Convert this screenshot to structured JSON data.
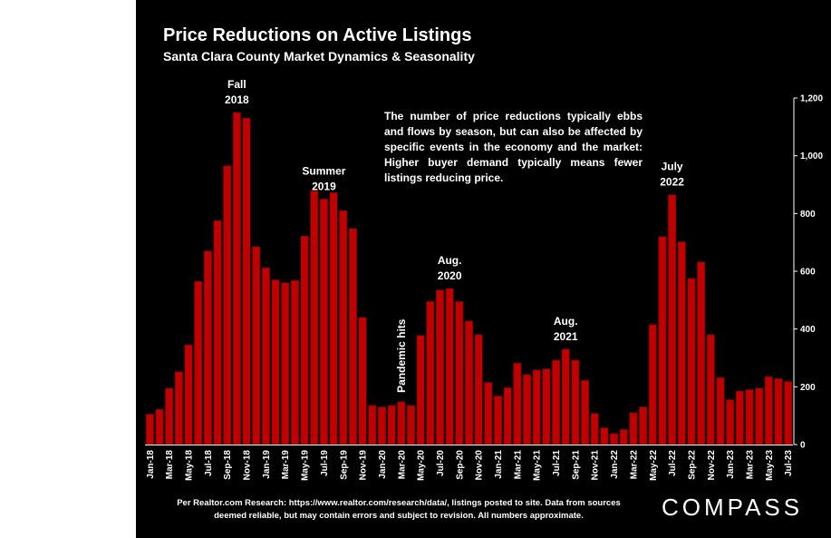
{
  "title": "Price Reductions on Active Listings",
  "subtitle": "Santa Clara County Market Dynamics & Seasonality",
  "annotation": "The number of price reductions typically ebbs and flows by season, but can also be affected by specific events in the economy and the market: Higher buyer demand typically means fewer listings reducing price.",
  "footer": "Per Realtor.com Research:  https://www.realtor.com/research/data/, listings posted to site. Data from sources deemed reliable, but may contain errors and subject to revision. All numbers approximate.",
  "brand": "COMPASS",
  "colors": {
    "bar": "#c00000",
    "bar_edge": "#7a0000",
    "background": "#000000",
    "text": "#ffffff"
  },
  "chart_data": {
    "type": "bar",
    "title": "Price Reductions on Active Listings",
    "subtitle": "Santa Clara County Market Dynamics & Seasonality",
    "xlabel": "",
    "ylabel": "",
    "ylim": [
      0,
      1200
    ],
    "y_axis_side": "right",
    "yticks": [
      0,
      200,
      400,
      600,
      800,
      1000,
      1200
    ],
    "ytick_labels": [
      "0",
      "200",
      "400",
      "600",
      "800",
      "1,000",
      "1,200"
    ],
    "grid": false,
    "categories": [
      "Jan-18",
      "Feb-18",
      "Mar-18",
      "Apr-18",
      "May-18",
      "Jun-18",
      "Jul-18",
      "Aug-18",
      "Sep-18",
      "Oct-18",
      "Nov-18",
      "Dec-18",
      "Jan-19",
      "Feb-19",
      "Mar-19",
      "Apr-19",
      "May-19",
      "Jun-19",
      "Jul-19",
      "Aug-19",
      "Sep-19",
      "Oct-19",
      "Nov-19",
      "Dec-19",
      "Jan-20",
      "Feb-20",
      "Mar-20",
      "Apr-20",
      "May-20",
      "Jun-20",
      "Jul-20",
      "Aug-20",
      "Sep-20",
      "Oct-20",
      "Nov-20",
      "Dec-20",
      "Jan-21",
      "Feb-21",
      "Mar-21",
      "Apr-21",
      "May-21",
      "Jun-21",
      "Jul-21",
      "Aug-21",
      "Sep-21",
      "Oct-21",
      "Nov-21",
      "Dec-21",
      "Jan-22",
      "Feb-22",
      "Mar-22",
      "Apr-22",
      "May-22",
      "Jun-22",
      "Jul-22",
      "Aug-22",
      "Sep-22",
      "Oct-22",
      "Nov-22",
      "Dec-22",
      "Jan-23",
      "Feb-23",
      "Mar-23",
      "Apr-23",
      "May-23",
      "Jun-23",
      "Jul-23"
    ],
    "values": [
      105,
      122,
      195,
      252,
      345,
      565,
      670,
      775,
      965,
      1150,
      1130,
      685,
      612,
      570,
      560,
      568,
      722,
      878,
      850,
      872,
      810,
      748,
      440,
      135,
      130,
      135,
      148,
      135,
      378,
      495,
      535,
      540,
      495,
      428,
      380,
      215,
      168,
      197,
      282,
      242,
      258,
      262,
      292,
      330,
      292,
      222,
      108,
      58,
      38,
      52,
      110,
      130,
      415,
      720,
      865,
      702,
      575,
      632,
      380,
      232,
      155,
      185,
      190,
      195,
      235,
      228,
      218
    ],
    "tick_labels_every": 2,
    "annotations": [
      {
        "category": "Oct-18",
        "text": [
          "Fall",
          "2018"
        ]
      },
      {
        "category": "Jul-19",
        "text": [
          "Summer",
          "2019"
        ]
      },
      {
        "category": "Mar-20",
        "text": [
          "Pandemic hits"
        ],
        "rotated": true
      },
      {
        "category": "Aug-20",
        "text": [
          "Aug.",
          "2020"
        ]
      },
      {
        "category": "Aug-21",
        "text": [
          "Aug.",
          "2021"
        ]
      },
      {
        "category": "Jul-22",
        "text": [
          "July",
          "2022"
        ]
      }
    ]
  }
}
